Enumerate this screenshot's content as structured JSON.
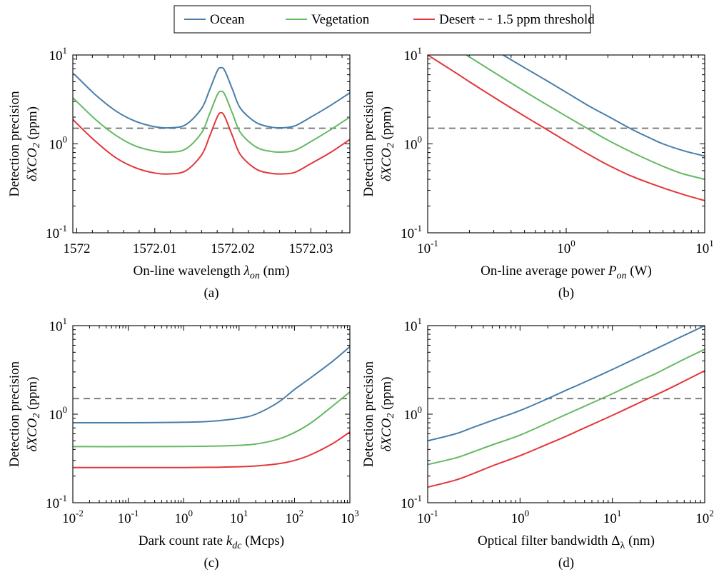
{
  "colors": {
    "ocean": "#4a7eab",
    "vegetation": "#64b964",
    "desert": "#e3363a",
    "threshold": "#7f7f7f"
  },
  "legend": {
    "entries": [
      {
        "label": "Ocean",
        "color": "#4a7eab",
        "dashed": false
      },
      {
        "label": "Vegetation",
        "color": "#64b964",
        "dashed": false
      },
      {
        "label": "Desert",
        "color": "#e3363a",
        "dashed": false
      },
      {
        "label": "1.5 ppm threshold",
        "color": "#7f7f7f",
        "dashed": true
      }
    ]
  },
  "chart_data": [
    {
      "panel": "(a)",
      "type": "line",
      "xscale": "linear",
      "yscale": "log",
      "xlim": [
        1571.9995,
        1572.035
      ],
      "ylim": [
        0.1,
        10
      ],
      "xticks": [
        1572,
        1572.01,
        1572.02,
        1572.03
      ],
      "xtick_labels": [
        "1572",
        "1572.01",
        "1572.02",
        "1572.03"
      ],
      "ytick_labels": [
        {
          "base": "10",
          "exp": "-1"
        },
        {
          "base": "10",
          "exp": "0"
        },
        {
          "base": "10",
          "exp": "1"
        }
      ],
      "ylabel_line1": "Detection precision",
      "ylabel_line2": "δXCO₂ (ppm)",
      "xlabel": "On-line wavelength λ_on (nm)",
      "threshold": 1.5,
      "series": [
        {
          "name": "Ocean",
          "color_key": "ocean",
          "x": [
            1571.9995,
            1572.0,
            1572.0025,
            1572.005,
            1572.0075,
            1572.01,
            1572.012,
            1572.014,
            1572.016,
            1572.017,
            1572.018,
            1572.0185,
            1572.019,
            1572.02,
            1572.021,
            1572.023,
            1572.025,
            1572.0265,
            1572.028,
            1572.03,
            1572.0325,
            1572.035
          ],
          "y": [
            6.2,
            5.7,
            3.5,
            2.35,
            1.8,
            1.56,
            1.52,
            1.65,
            2.5,
            4.0,
            6.6,
            7.2,
            6.6,
            4.0,
            2.5,
            1.74,
            1.54,
            1.52,
            1.6,
            2.0,
            2.7,
            3.75
          ]
        },
        {
          "name": "Vegetation",
          "color_key": "vegetation",
          "x": [
            1571.9995,
            1572.0,
            1572.0025,
            1572.005,
            1572.0075,
            1572.01,
            1572.012,
            1572.014,
            1572.016,
            1572.017,
            1572.018,
            1572.0185,
            1572.019,
            1572.02,
            1572.021,
            1572.023,
            1572.025,
            1572.0265,
            1572.028,
            1572.03,
            1572.0325,
            1572.035
          ],
          "y": [
            3.3,
            3.0,
            1.85,
            1.25,
            0.95,
            0.83,
            0.81,
            0.88,
            1.33,
            2.15,
            3.55,
            3.9,
            3.55,
            2.15,
            1.33,
            0.92,
            0.82,
            0.81,
            0.85,
            1.06,
            1.44,
            2.0
          ]
        },
        {
          "name": "Desert",
          "color_key": "desert",
          "x": [
            1571.9995,
            1572.0,
            1572.0025,
            1572.005,
            1572.0075,
            1572.01,
            1572.012,
            1572.014,
            1572.016,
            1572.017,
            1572.018,
            1572.0185,
            1572.019,
            1572.02,
            1572.021,
            1572.023,
            1572.025,
            1572.0265,
            1572.028,
            1572.03,
            1572.0325,
            1572.035
          ],
          "y": [
            1.9,
            1.7,
            1.05,
            0.7,
            0.54,
            0.47,
            0.46,
            0.5,
            0.75,
            1.2,
            2.0,
            2.25,
            2.0,
            1.2,
            0.75,
            0.52,
            0.465,
            0.46,
            0.48,
            0.6,
            0.8,
            1.12
          ]
        }
      ]
    },
    {
      "panel": "(b)",
      "type": "line",
      "xscale": "log",
      "yscale": "log",
      "xlim": [
        0.1,
        10
      ],
      "ylim": [
        0.1,
        10
      ],
      "xtick_labels": [
        {
          "base": "10",
          "exp": "-1"
        },
        {
          "base": "10",
          "exp": "0"
        },
        {
          "base": "10",
          "exp": "1"
        }
      ],
      "ytick_labels": [
        {
          "base": "10",
          "exp": "-1"
        },
        {
          "base": "10",
          "exp": "0"
        },
        {
          "base": "10",
          "exp": "1"
        }
      ],
      "ylabel_line1": "Detection precision",
      "ylabel_line2": "δXCO₂ (ppm)",
      "xlabel": "On-line average power P_on (W)",
      "threshold": 1.5,
      "series": [
        {
          "name": "Ocean",
          "color_key": "ocean",
          "x": [
            0.35,
            0.5,
            0.7,
            1.0,
            1.5,
            2.0,
            3.0,
            4.0,
            5.0,
            7.0,
            10.0
          ],
          "y": [
            10.0,
            7.2,
            5.3,
            3.8,
            2.6,
            2.05,
            1.45,
            1.17,
            1.0,
            0.84,
            0.73
          ]
        },
        {
          "name": "Vegetation",
          "color_key": "vegetation",
          "x": [
            0.19,
            0.3,
            0.5,
            0.7,
            1.0,
            1.5,
            2.0,
            3.0,
            5.0,
            7.0,
            10.0
          ],
          "y": [
            10.0,
            6.4,
            3.9,
            2.85,
            2.05,
            1.42,
            1.1,
            0.8,
            0.56,
            0.46,
            0.4
          ]
        },
        {
          "name": "Desert",
          "color_key": "desert",
          "x": [
            0.1,
            0.15,
            0.2,
            0.3,
            0.5,
            0.7,
            1.0,
            1.5,
            2.0,
            3.0,
            5.0,
            7.0,
            10.0
          ],
          "y": [
            10.0,
            6.7,
            5.0,
            3.35,
            2.05,
            1.5,
            1.07,
            0.74,
            0.58,
            0.43,
            0.32,
            0.27,
            0.23
          ]
        }
      ]
    },
    {
      "panel": "(c)",
      "type": "line",
      "xscale": "log",
      "yscale": "log",
      "xlim": [
        0.01,
        1000
      ],
      "ylim": [
        0.1,
        10
      ],
      "xtick_labels": [
        {
          "base": "10",
          "exp": "-2"
        },
        {
          "base": "10",
          "exp": "-1"
        },
        {
          "base": "10",
          "exp": "0"
        },
        {
          "base": "10",
          "exp": "1"
        },
        {
          "base": "10",
          "exp": "2"
        },
        {
          "base": "10",
          "exp": "3"
        }
      ],
      "ytick_labels": [
        {
          "base": "10",
          "exp": "-1"
        },
        {
          "base": "10",
          "exp": "0"
        },
        {
          "base": "10",
          "exp": "1"
        }
      ],
      "ylabel_line1": "Detection precision",
      "ylabel_line2": "δXCO₂ (ppm)",
      "xlabel": "Dark count rate k_dc (Mcps)",
      "threshold": 1.5,
      "series": [
        {
          "name": "Ocean",
          "color_key": "ocean",
          "x": [
            0.01,
            0.1,
            1,
            3,
            10,
            20,
            50,
            100,
            200,
            500,
            1000
          ],
          "y": [
            0.8,
            0.8,
            0.81,
            0.83,
            0.9,
            1.0,
            1.35,
            1.9,
            2.6,
            4.0,
            5.8
          ]
        },
        {
          "name": "Vegetation",
          "color_key": "vegetation",
          "x": [
            0.01,
            0.1,
            1,
            3,
            10,
            20,
            50,
            100,
            200,
            500,
            1000
          ],
          "y": [
            0.43,
            0.43,
            0.432,
            0.435,
            0.445,
            0.46,
            0.52,
            0.62,
            0.8,
            1.25,
            1.78
          ]
        },
        {
          "name": "Desert",
          "color_key": "desert",
          "x": [
            0.01,
            0.1,
            1,
            3,
            10,
            20,
            50,
            100,
            200,
            500,
            1000
          ],
          "y": [
            0.25,
            0.25,
            0.25,
            0.251,
            0.255,
            0.26,
            0.275,
            0.3,
            0.35,
            0.47,
            0.63
          ]
        }
      ]
    },
    {
      "panel": "(d)",
      "type": "line",
      "xscale": "log",
      "yscale": "log",
      "xlim": [
        0.1,
        100
      ],
      "ylim": [
        0.1,
        10
      ],
      "xtick_labels": [
        {
          "base": "10",
          "exp": "-1"
        },
        {
          "base": "10",
          "exp": "0"
        },
        {
          "base": "10",
          "exp": "1"
        },
        {
          "base": "10",
          "exp": "2"
        }
      ],
      "ytick_labels": [
        {
          "base": "10",
          "exp": "-1"
        },
        {
          "base": "10",
          "exp": "0"
        },
        {
          "base": "10",
          "exp": "1"
        }
      ],
      "ylabel_line1": "Detection precision",
      "ylabel_line2": "δXCO₂ (ppm)",
      "xlabel": "Optical filter bandwidth Δλ (nm)",
      "threshold": 1.5,
      "series": [
        {
          "name": "Ocean",
          "color_key": "ocean",
          "x": [
            0.1,
            0.2,
            0.3,
            0.5,
            1,
            2,
            3,
            5,
            10,
            20,
            30,
            50,
            100
          ],
          "y": [
            0.5,
            0.6,
            0.7,
            0.85,
            1.1,
            1.5,
            1.82,
            2.3,
            3.2,
            4.5,
            5.5,
            7.1,
            10.0
          ]
        },
        {
          "name": "Vegetation",
          "color_key": "vegetation",
          "x": [
            0.1,
            0.2,
            0.3,
            0.5,
            1,
            2,
            3,
            5,
            10,
            20,
            30,
            50,
            100
          ],
          "y": [
            0.27,
            0.32,
            0.37,
            0.45,
            0.58,
            0.8,
            0.97,
            1.23,
            1.7,
            2.4,
            2.9,
            3.8,
            5.4
          ]
        },
        {
          "name": "Desert",
          "color_key": "desert",
          "x": [
            0.1,
            0.2,
            0.3,
            0.5,
            1,
            2,
            3,
            5,
            10,
            20,
            30,
            50,
            100
          ],
          "y": [
            0.15,
            0.18,
            0.21,
            0.26,
            0.34,
            0.46,
            0.55,
            0.7,
            0.97,
            1.36,
            1.66,
            2.15,
            3.1
          ]
        }
      ]
    }
  ]
}
